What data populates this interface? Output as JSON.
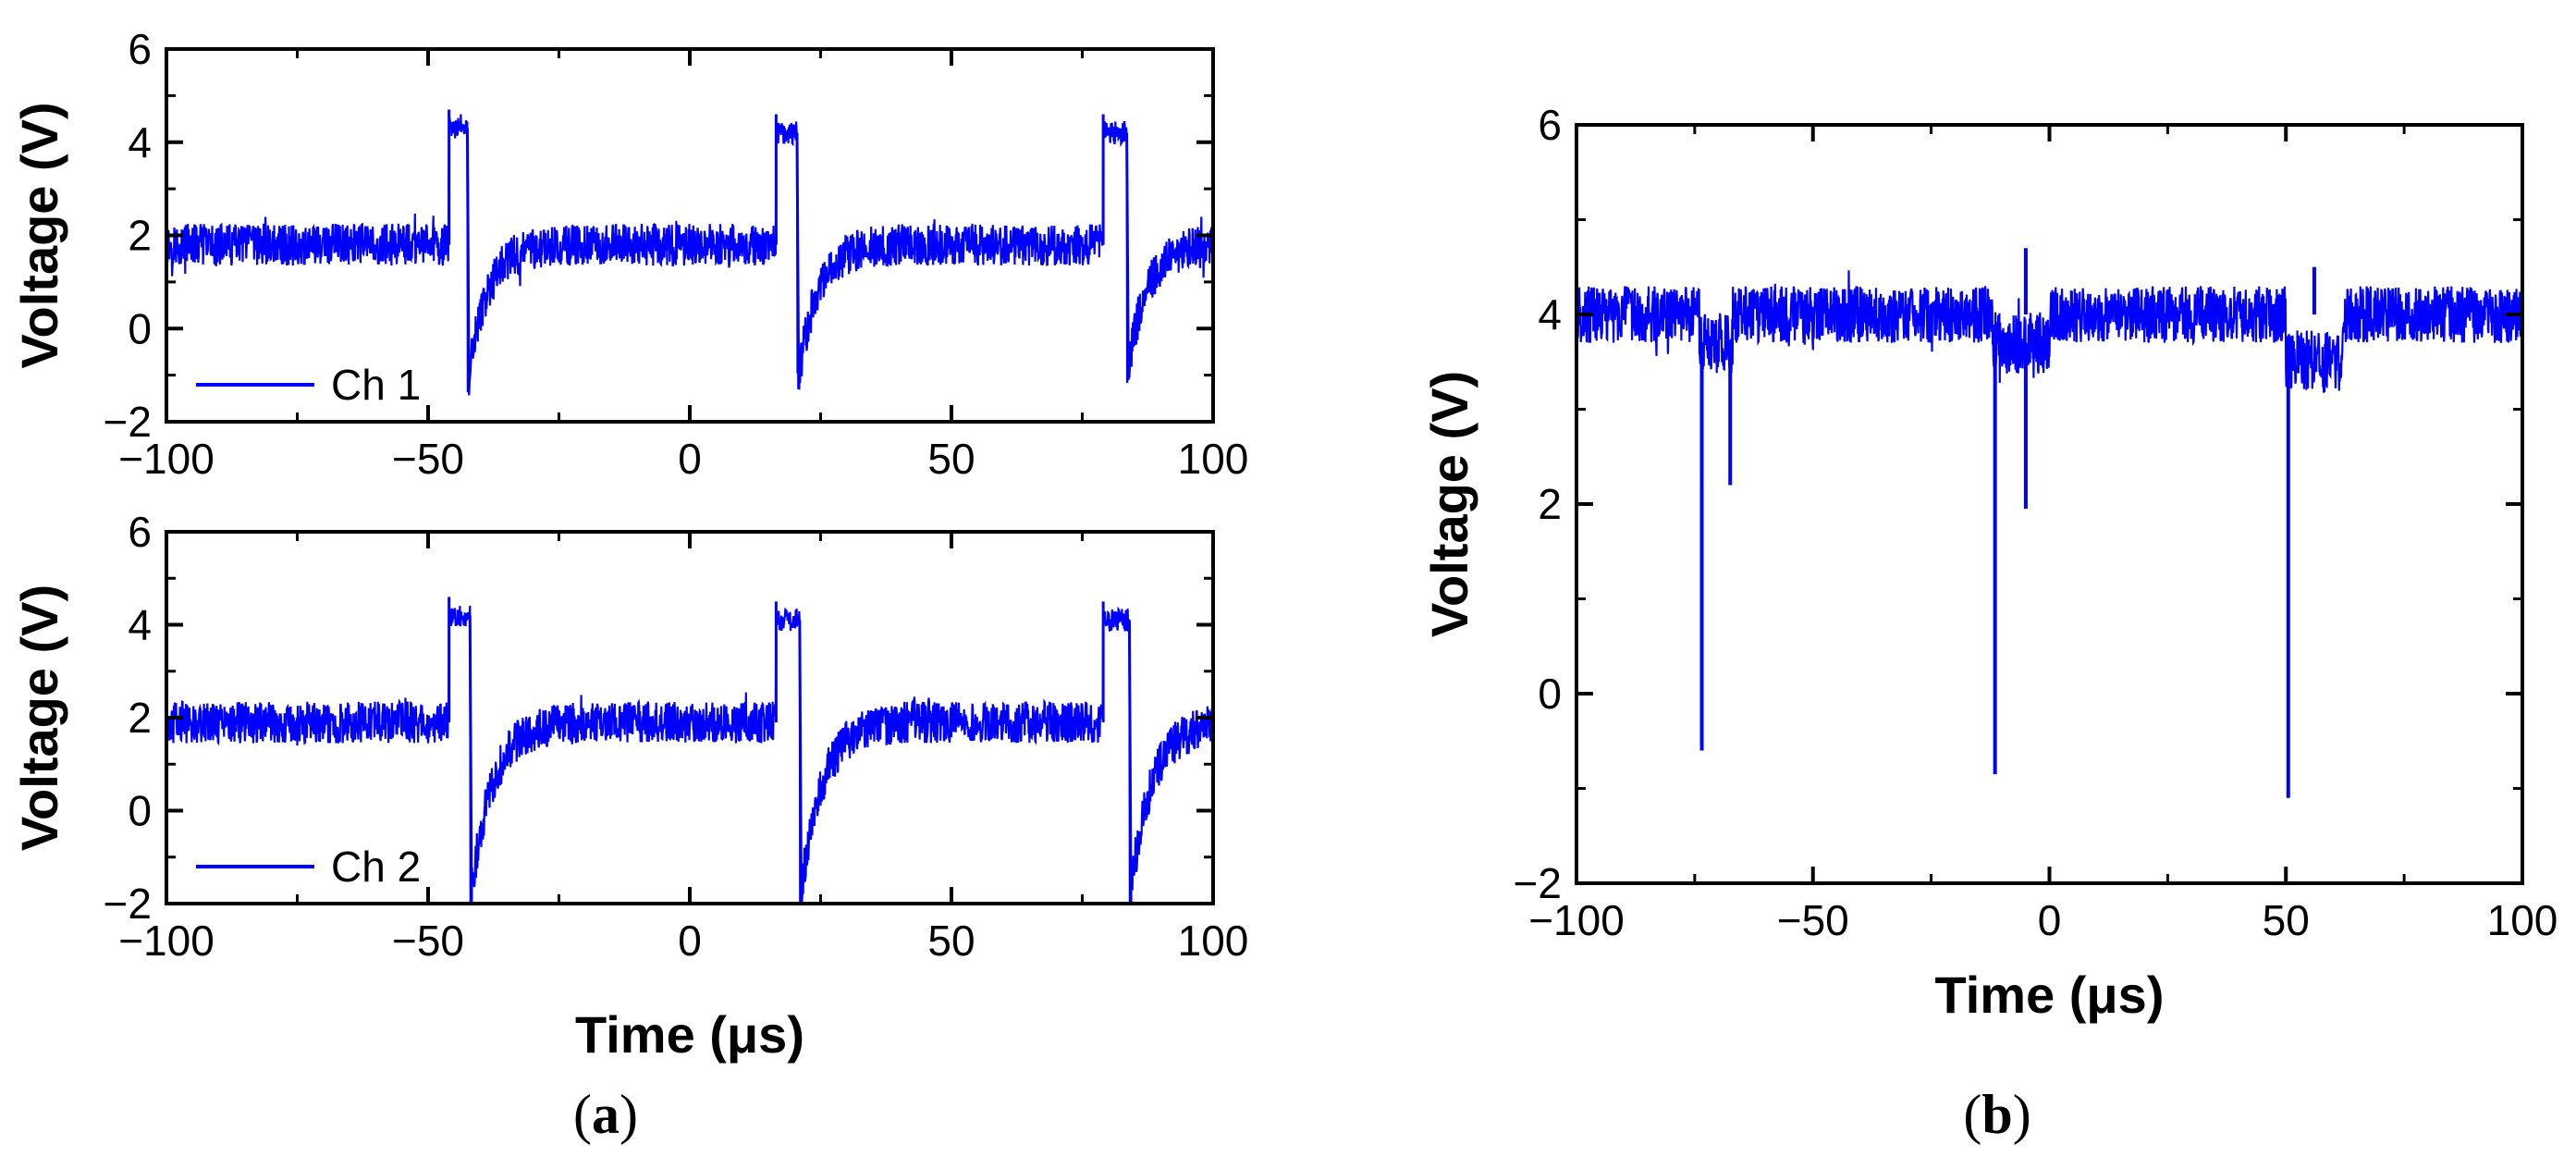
{
  "colors": {
    "trace": "#0000FF",
    "axis": "#000000"
  },
  "panels": {
    "a": {
      "label_open": "(",
      "label_letter": "a",
      "label_close": ")"
    },
    "b": {
      "label_open": "(",
      "label_letter": "b",
      "label_close": ")"
    }
  },
  "chart_data": [
    {
      "id": "a-top",
      "type": "line",
      "xlabel": "",
      "ylabel": "Voltage (V)",
      "xlim": [
        -100,
        100
      ],
      "ylim": [
        -2,
        6
      ],
      "xticks": [
        -100,
        -50,
        0,
        50,
        100
      ],
      "yticks": [
        -2,
        0,
        2,
        4,
        6
      ],
      "xtick_labels": [
        "−100",
        "−50",
        "0",
        "50",
        "100"
      ],
      "ytick_labels": [
        "−2",
        "0",
        "2",
        "4",
        "6"
      ],
      "legend": {
        "placement": "bottom-left",
        "entries": [
          "Ch 1"
        ]
      },
      "series": [
        {
          "name": "Ch 1",
          "baseline": 1.8,
          "noise": 0.45,
          "pulses": [
            {
              "start": -46,
              "end": -42.5,
              "high": 4.3,
              "dip": -1.3,
              "recovery_tau": 3.5
            },
            {
              "start": 16.5,
              "end": 20.5,
              "high": 4.2,
              "dip": -1.3,
              "recovery_tau": 3.5
            },
            {
              "start": 79,
              "end": 83.5,
              "high": 4.2,
              "dip": -1.1,
              "recovery_tau": 3.5
            }
          ]
        }
      ]
    },
    {
      "id": "a-bottom",
      "type": "line",
      "xlabel": "Time (μs)",
      "ylabel": "Voltage (V)",
      "xlim": [
        -100,
        100
      ],
      "ylim": [
        -2,
        6
      ],
      "xticks": [
        -100,
        -50,
        0,
        50,
        100
      ],
      "yticks": [
        -2,
        0,
        2,
        4,
        6
      ],
      "xtick_labels": [
        "−100",
        "−50",
        "0",
        "50",
        "100"
      ],
      "ytick_labels": [
        "−2",
        "0",
        "2",
        "4",
        "6"
      ],
      "legend": {
        "placement": "bottom-left",
        "entries": [
          "Ch 2"
        ]
      },
      "series": [
        {
          "name": "Ch 2",
          "baseline": 1.9,
          "noise": 0.45,
          "pulses": [
            {
              "start": -46,
              "end": -42,
              "high": 4.2,
              "dip": -2.0,
              "recovery_tau": 4
            },
            {
              "start": 16.5,
              "end": 21,
              "high": 4.1,
              "dip": -2.0,
              "recovery_tau": 4
            },
            {
              "start": 79,
              "end": 84,
              "high": 4.1,
              "dip": -2.0,
              "recovery_tau": 4
            }
          ]
        }
      ]
    },
    {
      "id": "b",
      "type": "line",
      "xlabel": "Time (μs)",
      "ylabel": "Voltage (V)",
      "xlim": [
        -100,
        100
      ],
      "ylim": [
        -2,
        6
      ],
      "xticks": [
        -100,
        -50,
        0,
        50,
        100
      ],
      "yticks": [
        -2,
        0,
        2,
        4,
        6
      ],
      "xtick_labels": [
        "−100",
        "−50",
        "0",
        "50",
        "100"
      ],
      "ytick_labels": [
        "−2",
        "0",
        "2",
        "4",
        "6"
      ],
      "series": [
        {
          "name": "",
          "baseline": 4.0,
          "noise": 0.3,
          "dropouts": [
            {
              "start": -74,
              "end": -67,
              "level": 3.7
            },
            {
              "start": -12,
              "end": 0,
              "level": 3.7
            },
            {
              "start": 50,
              "end": 62,
              "level": 3.5
            }
          ],
          "spikes": [
            {
              "x": -73.5,
              "y": -0.6
            },
            {
              "x": -67.5,
              "y": 2.2
            },
            {
              "x": -11.5,
              "y": -0.85
            },
            {
              "x": -5,
              "y": 1.95
            },
            {
              "x": -5,
              "y": 4.7
            },
            {
              "x": 50.5,
              "y": -1.1
            },
            {
              "x": 56,
              "y": 4.5
            }
          ]
        }
      ]
    }
  ]
}
